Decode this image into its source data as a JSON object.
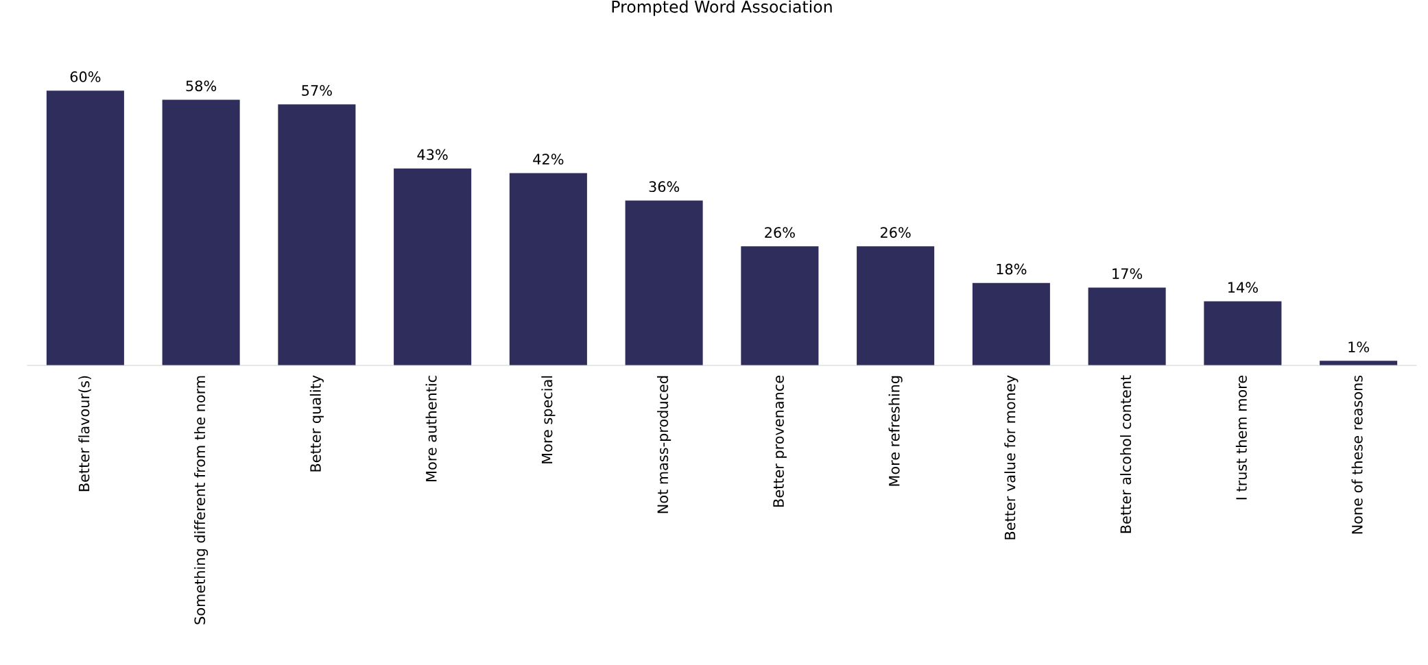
{
  "chart_data": {
    "type": "bar",
    "title": "Prompted Word Association",
    "categories": [
      "Better flavour(s)",
      "Something different from the norm",
      "Better quality",
      "More authentic",
      "More special",
      "Not mass-produced",
      "Better provenance",
      "More refreshing",
      "Better value for money",
      "Better alcohol content",
      "I trust them more",
      "None of these reasons"
    ],
    "values": [
      60,
      58,
      57,
      43,
      42,
      36,
      26,
      26,
      18,
      17,
      14,
      1
    ],
    "value_labels": [
      "60%",
      "58%",
      "57%",
      "43%",
      "42%",
      "36%",
      "26%",
      "26%",
      "18%",
      "17%",
      "14%",
      "1%"
    ],
    "color": "#2f2d5c",
    "grid": false,
    "legend": false
  }
}
